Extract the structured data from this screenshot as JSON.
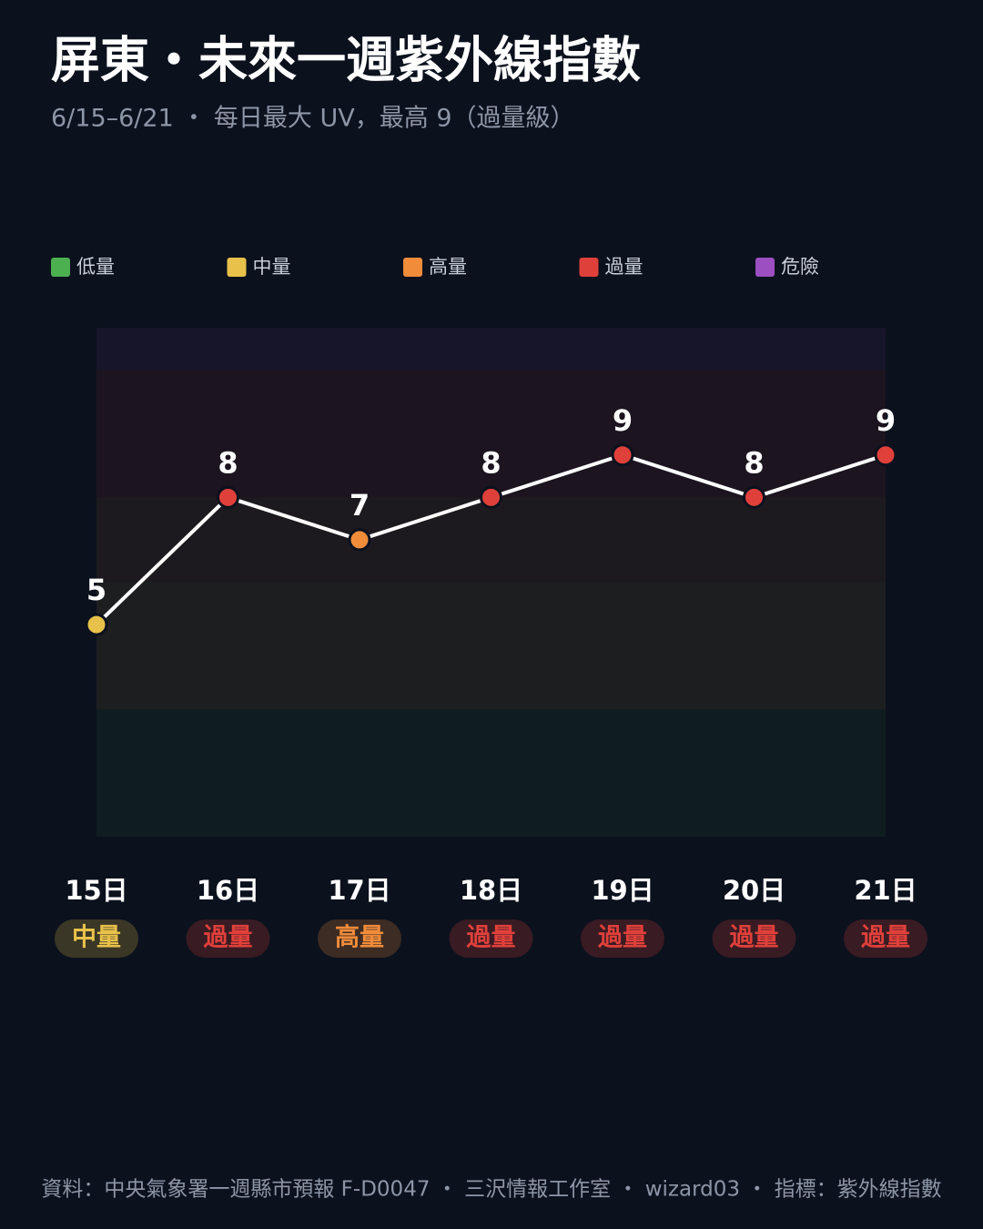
{
  "chart_data": {
    "type": "line",
    "title": "屏東・未來一週紫外線指數",
    "subtitle": "6/15–6/21 ・ 每日最大 UV，最高 9（過量級）",
    "categories": [
      "15日",
      "16日",
      "17日",
      "18日",
      "19日",
      "20日",
      "21日"
    ],
    "values": [
      5,
      8,
      7,
      8,
      9,
      8,
      9
    ],
    "level_labels": [
      "中量",
      "過量",
      "高量",
      "過量",
      "過量",
      "過量",
      "過量"
    ],
    "line_color": "#ffffff",
    "ylim": [
      0,
      12
    ],
    "bands": [
      {
        "name": "低量",
        "color": "#4caf50",
        "from": 0,
        "to": 3
      },
      {
        "name": "中量",
        "color": "#e8c14a",
        "from": 3,
        "to": 6
      },
      {
        "name": "高量",
        "color": "#f08c3a",
        "from": 6,
        "to": 8
      },
      {
        "name": "過量",
        "color": "#e0403a",
        "from": 8,
        "to": 11
      },
      {
        "name": "危險",
        "color": "#9b4fc0",
        "from": 11,
        "to": 12
      }
    ],
    "footer": "資料：中央氣象署一週縣市預報 F-D0047 ・ 三沢情報工作室 ・ wizard03 ・ 指標：紫外線指數"
  }
}
